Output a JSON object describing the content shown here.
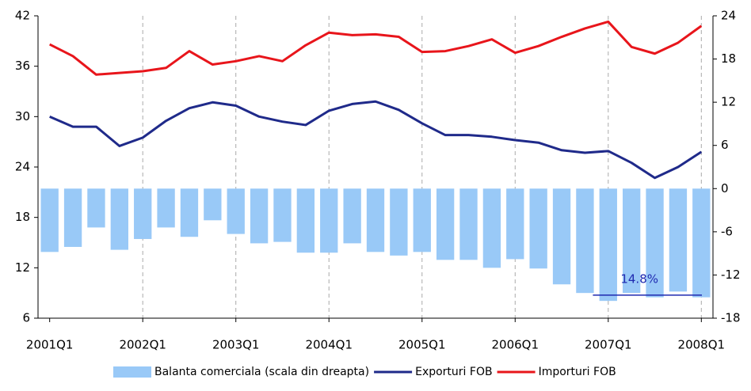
{
  "chart_data": {
    "type": "bar-line",
    "categories": [
      "2001Q1",
      null,
      null,
      null,
      "2002Q1",
      null,
      null,
      null,
      "2003Q1",
      null,
      null,
      null,
      "2004Q1",
      null,
      null,
      null,
      "2005Q1",
      null,
      null,
      null,
      "2006Q1",
      null,
      null,
      null,
      "2007Q1",
      null,
      null,
      null,
      "2008Q1"
    ],
    "series": [
      {
        "name": "Balanta comerciala (scala din dreapta)",
        "type": "bar",
        "axis": "y2",
        "color": "#99c9f7",
        "values": [
          -8.8,
          -8.1,
          -5.4,
          -8.5,
          -7.0,
          -5.4,
          -6.7,
          -4.4,
          -6.3,
          -7.6,
          -7.4,
          -8.9,
          -8.9,
          -7.6,
          -8.8,
          -9.3,
          -8.8,
          -9.9,
          -9.9,
          -11.0,
          -9.8,
          -11.1,
          -13.3,
          -14.5,
          -15.6,
          -14.5,
          -15.1,
          -14.3,
          -15.1
        ]
      },
      {
        "name": "Exporturi FOB",
        "type": "line",
        "color": "#1f2a8a",
        "values": [
          30.0,
          28.8,
          28.8,
          26.5,
          27.5,
          29.5,
          31.0,
          31.7,
          31.3,
          30.0,
          29.4,
          29.0,
          30.7,
          31.5,
          31.8,
          30.8,
          29.2,
          27.8,
          27.8,
          27.6,
          27.2,
          26.9,
          26.0,
          25.7,
          25.9,
          24.5,
          22.7,
          24.0,
          25.8
        ]
      },
      {
        "name": "Importuri FOB",
        "type": "line",
        "color": "#e8151b",
        "values": [
          38.6,
          37.2,
          35.0,
          35.2,
          35.4,
          35.8,
          37.8,
          36.2,
          36.6,
          37.2,
          36.6,
          38.5,
          40.0,
          39.7,
          39.8,
          39.5,
          37.7,
          37.8,
          38.4,
          39.2,
          37.6,
          38.4,
          39.5,
          40.5,
          41.3,
          38.3,
          37.5,
          38.8,
          40.8
        ]
      }
    ],
    "annotation": {
      "text": "14.8%",
      "value": -14.8
    },
    "ylim": [
      6,
      42
    ],
    "yticks": [
      6,
      12,
      18,
      24,
      30,
      36,
      42
    ],
    "y2lim": [
      -18,
      24
    ],
    "y2ticks": [
      -18,
      -12,
      -6,
      0,
      6,
      12,
      18,
      24
    ],
    "grid": true
  }
}
